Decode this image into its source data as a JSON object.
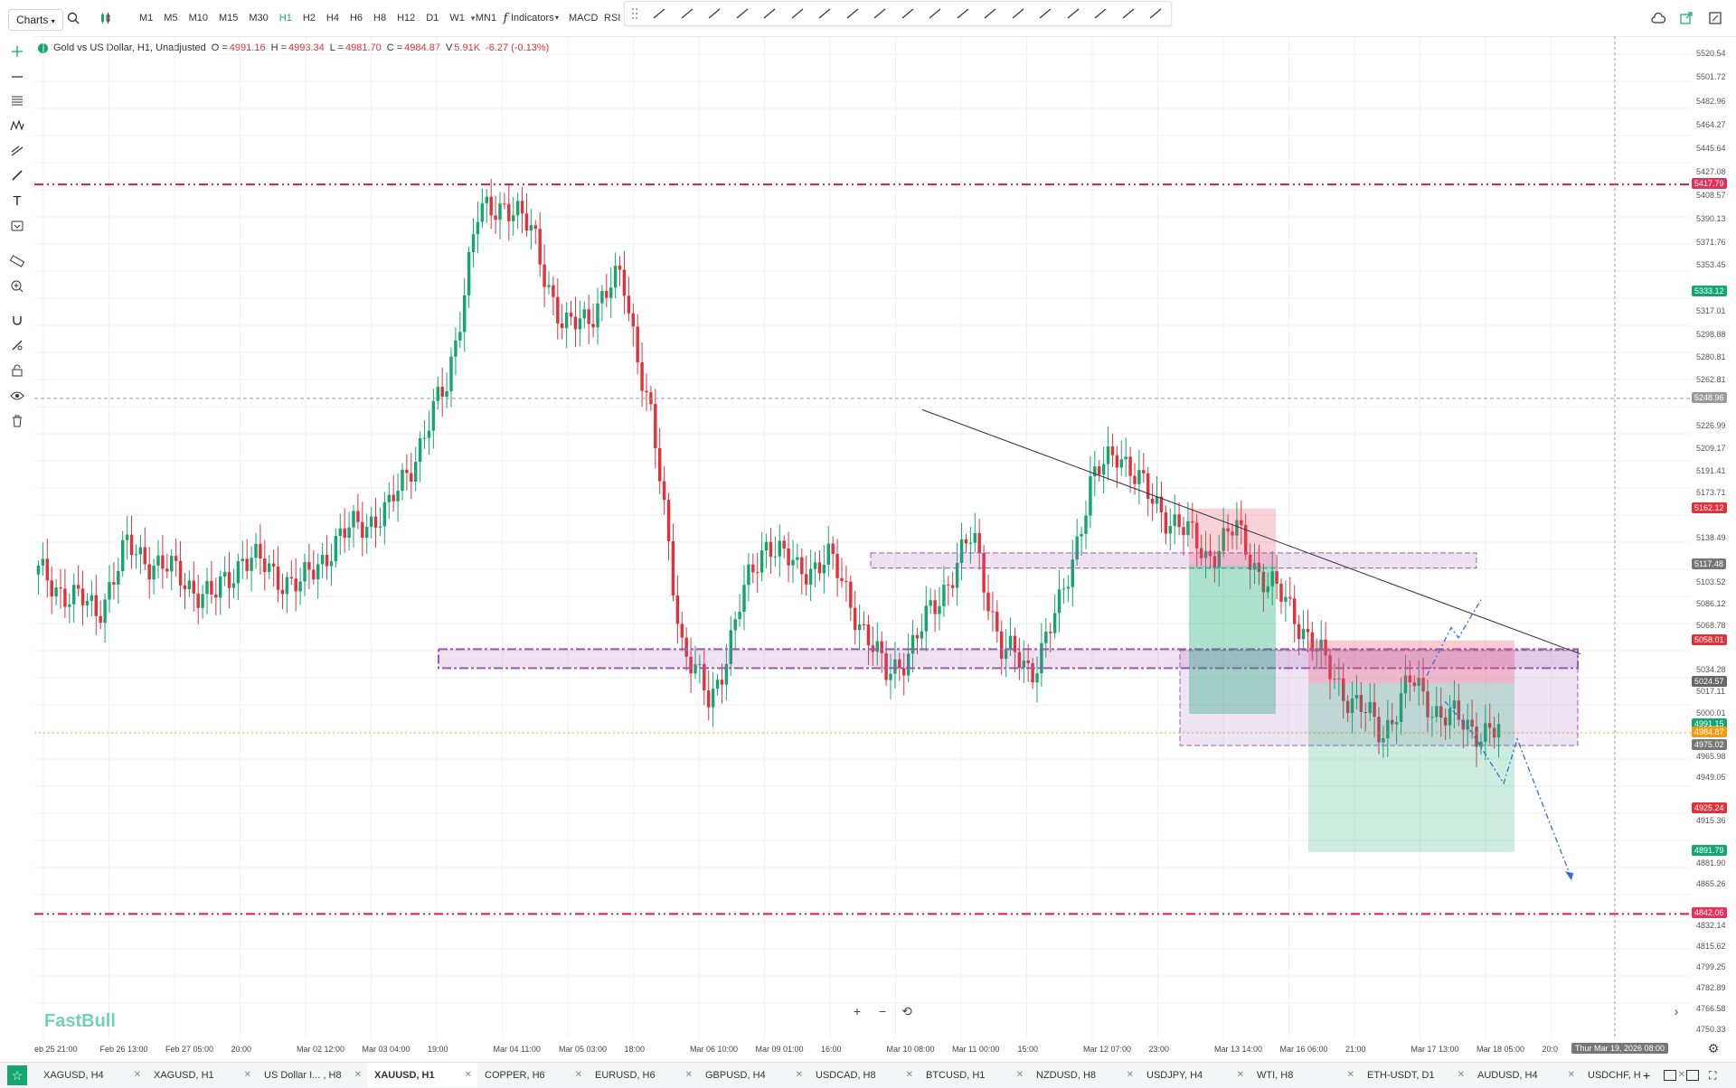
{
  "toolbar": {
    "charts_label": "Charts",
    "timeframes": [
      "M1",
      "M5",
      "M10",
      "M15",
      "M30",
      "H1",
      "H2",
      "H4",
      "H6",
      "H8",
      "H12",
      "D1",
      "W1",
      "MN1"
    ],
    "active_timeframe": "H1",
    "indicators_label": "Indicators",
    "macd_label": "MACD",
    "rsi_label": "RSI"
  },
  "legend": {
    "symbol_title": "Gold vs US Dollar, H1, Unadjusted",
    "open_label": "O =",
    "open": "4991.16",
    "high_label": "H =",
    "high": "4993.34",
    "low_label": "L =",
    "low": "4981.70",
    "close_label": "C =",
    "close": "4984.87",
    "volume_label": "V",
    "volume": "5.91K",
    "change": "-6.27 (-0.13%)"
  },
  "watermark": "FastBull",
  "price_axis": {
    "labels": [
      "5520.54",
      "5501.72",
      "5482.96",
      "5464.27",
      "5445.64",
      "5427.08",
      "5408.57",
      "5390.13",
      "5371.76",
      "5353.45",
      "5317.01",
      "5298.88",
      "5280.81",
      "5262.81",
      "5226.99",
      "5209.17",
      "5191.41",
      "5173.71",
      "5138.49",
      "5103.52",
      "5086.12",
      "5068.78",
      "5034.28",
      "5017.11",
      "5000.01",
      "4965.98",
      "4949.05",
      "4915.36",
      "4881.90",
      "4865.26",
      "4832.14",
      "4815.62",
      "4799.25",
      "4782.89",
      "4766.58",
      "4750.33"
    ],
    "tags": [
      {
        "value": "5417.79",
        "color": "#e8305a"
      },
      {
        "value": "5333.12",
        "color": "#13a76f"
      },
      {
        "value": "5248.96",
        "color": "#9a9a9a"
      },
      {
        "value": "5162.12",
        "color": "#e3313c"
      },
      {
        "value": "5117.48",
        "color": "#777777"
      },
      {
        "value": "5058.01",
        "color": "#e3313c"
      },
      {
        "value": "5024.57",
        "color": "#666666"
      },
      {
        "value": "4991.15",
        "color": "#13a76f"
      },
      {
        "value": "4984.87",
        "color": "#f39c12"
      },
      {
        "value": "4975.02",
        "color": "#777777"
      },
      {
        "value": "4925.24",
        "color": "#e3313c"
      },
      {
        "value": "4891.79",
        "color": "#13a76f"
      },
      {
        "value": "4842.06",
        "color": "#e8305a"
      }
    ]
  },
  "time_axis": {
    "labels": [
      "eb 25 21:00",
      "Feb 26 13:00",
      "Feb 27 05:00",
      "20:00",
      "Mar 02 12:00",
      "Mar 03 04:00",
      "19:00",
      "Mar 04 11:00",
      "Mar 05 03:00",
      "18:00",
      "Mar 06 10:00",
      "Mar 09 01:00",
      "16:00",
      "Mar 10 08:00",
      "Mar 11 00:00",
      "15:00",
      "Mar 12 07:00",
      "23:00",
      "Mar 13 14:00",
      "Mar 16 06:00",
      "21:00",
      "Mar 17 13:00",
      "Mar 18 05:00",
      "20:0"
    ],
    "crosshair": "Thur Mar 19, 2026 08:00"
  },
  "tabs": [
    {
      "label": "XAGUSD, H4",
      "active": false
    },
    {
      "label": "XAGUSD, H1",
      "active": false
    },
    {
      "label": "US Dollar I... , H8",
      "active": false
    },
    {
      "label": "XAUUSD, H1",
      "active": true
    },
    {
      "label": "COPPER, H6",
      "active": false
    },
    {
      "label": "EURUSD, H6",
      "active": false
    },
    {
      "label": "GBPUSD, H4",
      "active": false
    },
    {
      "label": "USDCAD, H8",
      "active": false
    },
    {
      "label": "BTCUSD, H1",
      "active": false
    },
    {
      "label": "NZDUSD, H8",
      "active": false
    },
    {
      "label": "USDJPY, H4",
      "active": false
    },
    {
      "label": "WTI, H8",
      "active": false
    },
    {
      "label": "ETH-USDT, D1",
      "active": false
    },
    {
      "label": "AUDUSD, H4",
      "active": false
    },
    {
      "label": "USDCHF, H",
      "active": false
    }
  ],
  "colors": {
    "up": "#13a76f",
    "down": "#e3313c",
    "level_line": "#d81b4f",
    "zone": "#9b59b6",
    "trend": "#333333",
    "projection": "#2f6fdd"
  },
  "chart_data": {
    "type": "candlestick",
    "symbol": "XAUUSD",
    "timeframe": "H1",
    "ylim": [
      4750.33,
      5520.54
    ],
    "series_close": [
      5110,
      5095,
      5080,
      5130,
      5120,
      5105,
      5090,
      5125,
      5112,
      5100,
      5132,
      5150,
      5160,
      5210,
      5260,
      5390,
      5405,
      5375,
      5300,
      5320,
      5345,
      5230,
      5060,
      5005,
      5085,
      5140,
      5110,
      5125,
      5080,
      5030,
      5055,
      5100,
      5140,
      5050,
      5035,
      5085,
      5180,
      5210,
      5170,
      5150,
      5125,
      5145,
      5105,
      5080,
      5040,
      5010,
      4985,
      5025,
      5000,
      4990,
      4984
    ],
    "horizontal_levels": [
      5417.79,
      5248.96,
      4842.06
    ],
    "zones": [
      {
        "top": 5127,
        "bottom": 5115
      },
      {
        "top": 5051,
        "bottom": 5036
      },
      {
        "top": 5036,
        "bottom": 4975
      }
    ],
    "trendline": {
      "from": 5240,
      "to": 5090
    }
  }
}
